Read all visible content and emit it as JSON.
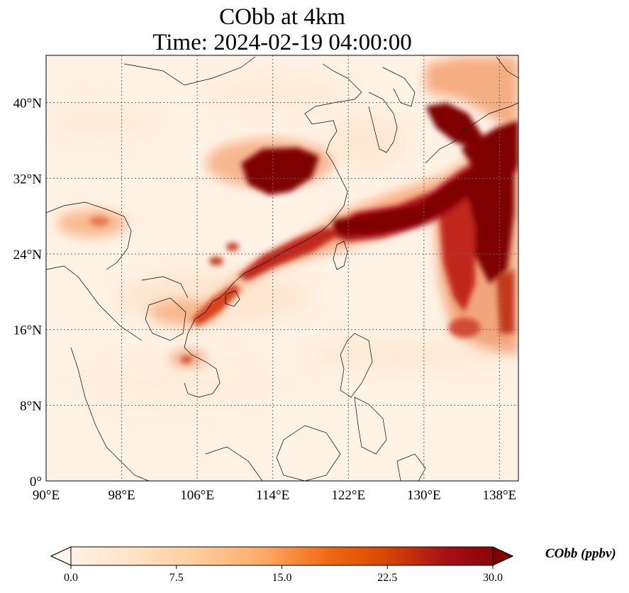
{
  "title": {
    "line1": "CObb at 4km",
    "line2": "Time: 2024-02-19 04:00:00"
  },
  "map": {
    "extent_lon": [
      90,
      140
    ],
    "extent_lat": [
      0,
      45
    ],
    "lon_ticks": [
      {
        "value": 90,
        "label": "90°E"
      },
      {
        "value": 98,
        "label": "98°E"
      },
      {
        "value": 106,
        "label": "106°E"
      },
      {
        "value": 114,
        "label": "114°E"
      },
      {
        "value": 122,
        "label": "122°E"
      },
      {
        "value": 130,
        "label": "130°E"
      },
      {
        "value": 138,
        "label": "138°E"
      }
    ],
    "lat_ticks": [
      {
        "value": 0,
        "label": "0°"
      },
      {
        "value": 8,
        "label": "8°N"
      },
      {
        "value": 16,
        "label": "16°N"
      },
      {
        "value": 24,
        "label": "24°N"
      },
      {
        "value": 32,
        "label": "32°N"
      },
      {
        "value": 40,
        "label": "40°N"
      }
    ],
    "gridlines": true
  },
  "colorbar": {
    "label": "CObb (ppbv)",
    "min": 0.0,
    "max": 30.0,
    "ticks": [
      {
        "value": 0.0,
        "label": "0.0"
      },
      {
        "value": 7.5,
        "label": "7.5"
      },
      {
        "value": 15.0,
        "label": "15.0"
      },
      {
        "value": 22.5,
        "label": "22.5"
      },
      {
        "value": 30.0,
        "label": "30.0"
      }
    ],
    "colors": [
      "#fff5eb",
      "#fee6ce",
      "#fdd0a2",
      "#fdae6b",
      "#f16913",
      "#d94801",
      "#a50f15",
      "#7f0000"
    ],
    "extend": "both"
  },
  "colors": {
    "background": "#fff3e6",
    "high": "#7f0000",
    "coast": "#000000",
    "grid": "#666666"
  }
}
